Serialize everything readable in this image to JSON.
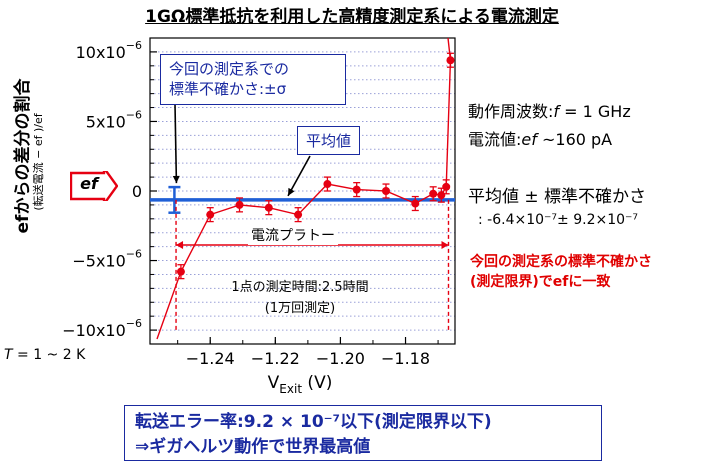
{
  "title": "1GΩ標準抵抗を利用した高精度測定系による電流測定",
  "y_axis_label": "efからの差分の割合",
  "y_axis_sublabel": "(転送電流 − ef )/ef",
  "ef_badge": "ef",
  "uncertainty_box": {
    "line1": "今回の測定系での",
    "line2": "標準不確かさ:±σ"
  },
  "mean_box": "平均値",
  "plateau_label": "電流プラトー",
  "measure_time": {
    "line1": "1点の測定時間:2.5時間",
    "line2": "(1万回測定)"
  },
  "temperature_label": {
    "symbol": "T",
    "value": " = 1 ~ 2 K"
  },
  "freq": {
    "label": "動作周波数:",
    "symbol": "f",
    "value": " = 1 GHz"
  },
  "current": {
    "label": "電流値:",
    "symbol": "ef",
    "value": " ~160 pA"
  },
  "mean_title": "平均値 ± 標準不確かさ",
  "mean_value": ": -6.4×10⁻⁷± 9.2×10⁻⁷",
  "red_note": {
    "line1": "今回の測定系の標準不確かさ",
    "line2": "(測定限界)でefに一致"
  },
  "bottom_box": {
    "line1": "転送エラー率:9.2 × 10⁻⁷以下(測定限界以下)",
    "line2": "⇒ギガヘルツ動作で世界最高値"
  },
  "colors": {
    "data_red": "#e60012",
    "mean_blue": "#1f5fd6",
    "box_blue": "#1a2aa0",
    "grid": "#9aa0d8"
  },
  "chart_data": {
    "type": "scatter",
    "xlabel": "V_Exit (V)",
    "xlabel_main": "V",
    "xlabel_sub": "Exit",
    "xlabel_unit": " (V)",
    "x_ticks": [
      "−1.24",
      "−1.22",
      "−1.20",
      "−1.18"
    ],
    "x_tick_values": [
      -1.24,
      -1.22,
      -1.2,
      -1.18
    ],
    "xlim": [
      -1.2585,
      -1.1648
    ],
    "y_ticks": [
      {
        "value": 1e-05,
        "mant": "10x10",
        "exp": "−6"
      },
      {
        "value": 5e-06,
        "mant": "5x10",
        "exp": "−6"
      },
      {
        "value": 0,
        "mant": "0",
        "exp": ""
      },
      {
        "value": -5e-06,
        "mant": "−5x10",
        "exp": "−6"
      },
      {
        "value": -1e-05,
        "mant": "−10x10",
        "exp": "−6"
      }
    ],
    "ylim": [
      -1.1e-05,
      1.1e-05
    ],
    "grid": true,
    "series": [
      {
        "points": [
          {
            "x": -1.249,
            "y": -5.8e-06,
            "err": 5e-07
          },
          {
            "x": -1.24,
            "y": -1.7e-06,
            "err": 5e-07
          },
          {
            "x": -1.231,
            "y": -1e-06,
            "err": 5e-07
          },
          {
            "x": -1.222,
            "y": -1.2e-06,
            "err": 5e-07
          },
          {
            "x": -1.213,
            "y": -1.7e-06,
            "err": 5e-07
          },
          {
            "x": -1.204,
            "y": 5e-07,
            "err": 5e-07
          },
          {
            "x": -1.195,
            "y": 1e-07,
            "err": 5e-07
          },
          {
            "x": -1.186,
            "y": 0.0,
            "err": 5e-07
          },
          {
            "x": -1.177,
            "y": -9e-07,
            "err": 5e-07
          },
          {
            "x": -1.1715,
            "y": -2e-07,
            "err": 5e-07
          },
          {
            "x": -1.169,
            "y": -3e-07,
            "err": 5e-07
          },
          {
            "x": -1.1675,
            "y": 3e-07,
            "err": 5e-07
          },
          {
            "x": -1.1662,
            "y": 9.4e-06,
            "err": 5e-07
          }
        ]
      }
    ],
    "mean": -6.4e-07,
    "sigma": 9.2e-07,
    "sigma_marker_x": -1.251,
    "plateau_range": [
      -1.2505,
      -1.1668
    ]
  }
}
